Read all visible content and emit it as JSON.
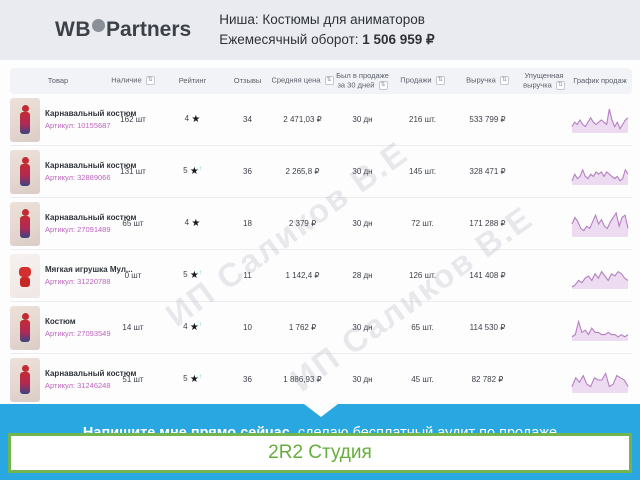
{
  "header": {
    "logo_wb": "WB",
    "logo_partners": "Partners",
    "niche": "Ниша: Костюмы для аниматоров",
    "turnover_label": "Ежемесячный оборот: ",
    "turnover_value": "1 506 959 ₽"
  },
  "table": {
    "columns": {
      "product": "Товар",
      "stock": "Наличие",
      "rating": "Рейтинг",
      "reviews": "Отзывы",
      "avg_price": "Средняя цена",
      "days_on_sale": "Был в продаже за 30 дней",
      "sales": "Продажи",
      "revenue": "Выручка",
      "lost_revenue": "Упущенная выручка",
      "sales_chart": "График продаж"
    },
    "sort_icon_glyph": "⇅",
    "sku_prefix": "Артикул: "
  },
  "rows": [
    {
      "name": "Карнавальный костюм",
      "sku": "10155687",
      "stock": "162 шт",
      "rating": "4",
      "star": "★",
      "rating_note": "",
      "reviews": "34",
      "avg_price": "2 471,03 ₽",
      "days": "30 дн",
      "sales": "216 шт.",
      "revenue": "533 799 ₽",
      "lost_revenue": "",
      "sparkline": [
        2,
        4,
        3,
        5,
        3,
        2,
        4,
        6,
        4,
        3,
        4,
        5,
        4,
        3,
        10,
        5,
        2,
        4,
        1,
        3,
        5,
        6
      ]
    },
    {
      "name": "Карнавальный костюм",
      "sku": "32889066",
      "stock": "131 шт",
      "rating": "5",
      "star": "★",
      "rating_note": "↑",
      "reviews": "36",
      "avg_price": "2 265,8 ₽",
      "days": "30 дн",
      "sales": "145 шт.",
      "revenue": "328 471 ₽",
      "lost_revenue": "",
      "sparkline": [
        1,
        4,
        2,
        3,
        6,
        3,
        2,
        4,
        3,
        5,
        4,
        5,
        3,
        5,
        4,
        3,
        2,
        3,
        1,
        2,
        6,
        4
      ]
    },
    {
      "name": "Карнавальный костюм",
      "sku": "27091489",
      "stock": "65 шт",
      "rating": "4",
      "star": "★",
      "rating_note": "",
      "reviews": "18",
      "avg_price": "2 379 ₽",
      "days": "30 дн",
      "sales": "72 шт.",
      "revenue": "171 288 ₽",
      "lost_revenue": "",
      "sparkline": [
        5,
        8,
        6,
        3,
        2,
        4,
        3,
        6,
        9,
        5,
        7,
        4,
        3,
        6,
        8,
        10,
        4,
        8,
        9,
        3
      ]
    },
    {
      "name": "Мягкая игрушка Мул...",
      "sku": "31220788",
      "stock": "0 шт",
      "rating": "5",
      "star": "★",
      "rating_note": "↑",
      "reviews": "11",
      "avg_price": "1 142,4 ₽",
      "days": "28 дн",
      "sales": "126 шт.",
      "revenue": "141 408 ₽",
      "lost_revenue": "",
      "sparkline": [
        0,
        1,
        3,
        2,
        4,
        5,
        3,
        6,
        4,
        7,
        5,
        3,
        6,
        5,
        7,
        6,
        4,
        3
      ]
    },
    {
      "name": "Костюм",
      "sku": "27093549",
      "stock": "14 шт",
      "rating": "4",
      "star": "★",
      "rating_note": "↑",
      "reviews": "10",
      "avg_price": "1 762 ₽",
      "days": "30 дн",
      "sales": "65 шт.",
      "revenue": "114 530 ₽",
      "lost_revenue": "",
      "sparkline": [
        1,
        2,
        8,
        3,
        4,
        2,
        5,
        3,
        3,
        2,
        2,
        3,
        2,
        2,
        1,
        2,
        1,
        2
      ]
    },
    {
      "name": "Карнавальный костюм",
      "sku": "31246248",
      "stock": "51 шт",
      "rating": "5",
      "star": "★",
      "rating_note": "↑",
      "reviews": "36",
      "avg_price": "1 886,93 ₽",
      "days": "30 дн",
      "sales": "45 шт.",
      "revenue": "82 782 ₽",
      "lost_revenue": "",
      "sparkline": [
        2,
        6,
        4,
        7,
        3,
        2,
        6,
        5,
        5,
        8,
        2,
        3,
        7,
        6,
        5,
        2
      ]
    }
  ],
  "chart_data": {
    "type": "line",
    "note": "per-row sales sparklines, values approximated from pixel heights",
    "series_source": "rows[].sparkline"
  },
  "watermark": {
    "text": "ИП Саликов В.Е"
  },
  "banner": {
    "bold_part": "Напишите мне прямо сейчас,",
    "regular_part": " сделаю бесплатный аудит по продаже",
    "promo_text": "2R2 Студия"
  },
  "colors": {
    "header_bg": "#e9ebf0",
    "table_header_bg": "#f2f3f7",
    "sku_purple": "#bd65bd",
    "spark_stroke": "#b57fc1",
    "spark_fill": "#e9d5ee",
    "banner_blue": "#29a7e1",
    "promo_green_border": "#72b54e",
    "promo_green_text": "#67ad3d",
    "rating_note_teal": "#3ec6c9"
  }
}
